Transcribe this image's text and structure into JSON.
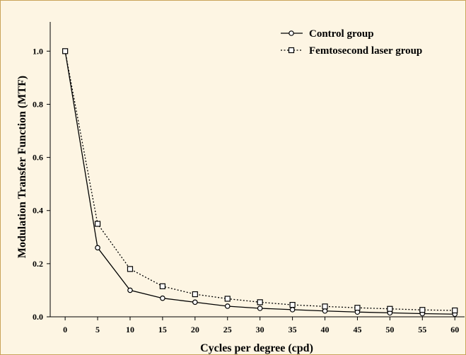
{
  "chart_data": {
    "type": "line",
    "title": "",
    "xlabel": "Cycles per degree (cpd)",
    "ylabel": "Modulation Transfer Function (MTF)",
    "x": [
      0,
      5,
      10,
      15,
      20,
      25,
      30,
      35,
      40,
      45,
      50,
      55,
      60
    ],
    "x_ticks": [
      0,
      5,
      10,
      15,
      20,
      25,
      30,
      35,
      40,
      45,
      50,
      55,
      60
    ],
    "y_ticks": [
      "0.0",
      "0.2",
      "0.4",
      "0.6",
      "0.8",
      "1.0"
    ],
    "xlim": [
      -2.3,
      61.5
    ],
    "ylim": [
      0,
      1.11
    ],
    "grid": false,
    "legend_position": "top-right",
    "series": [
      {
        "name": "Control group",
        "marker": "circle",
        "line_style": "solid",
        "values": [
          1.0,
          0.26,
          0.1,
          0.07,
          0.055,
          0.04,
          0.032,
          0.027,
          0.022,
          0.018,
          0.015,
          0.012,
          0.01
        ]
      },
      {
        "name": "Femtosecond laser group",
        "marker": "square",
        "line_style": "dotted",
        "values": [
          1.0,
          0.35,
          0.18,
          0.115,
          0.085,
          0.068,
          0.055,
          0.045,
          0.039,
          0.034,
          0.03,
          0.026,
          0.024
        ]
      }
    ],
    "colors": {
      "background": "#fdf5e3",
      "line": "#000000",
      "border": "#c9a45a"
    }
  }
}
